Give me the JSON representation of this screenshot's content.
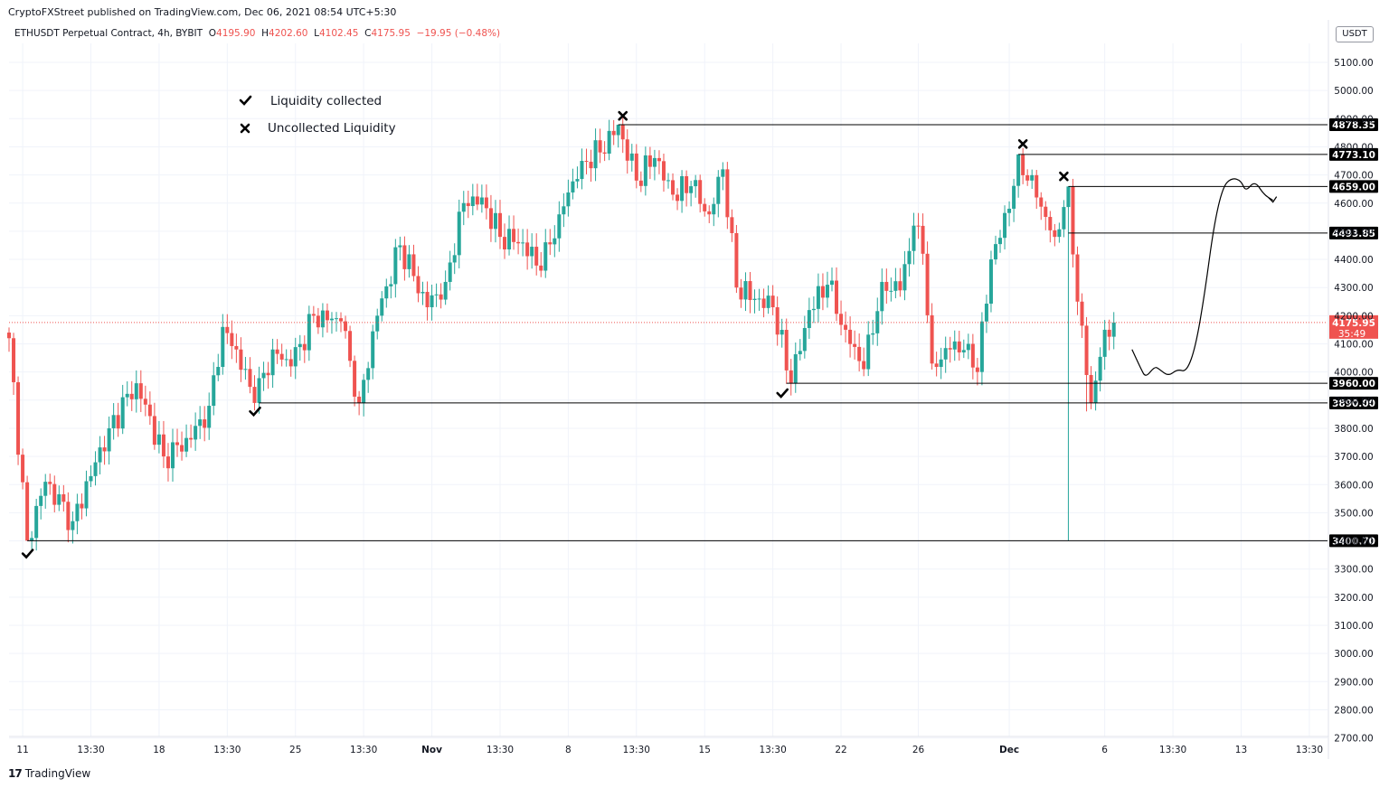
{
  "header": {
    "published": "CryptoFXStreet published on TradingView.com, Dec 06, 2021 08:54 UTC+5:30",
    "symbol": "ETHUSDT Perpetual Contract, 4h, BYBIT",
    "open_label": "O",
    "open": "4195.90",
    "high_label": "H",
    "high": "4202.60",
    "low_label": "L",
    "low": "4102.45",
    "close_label": "C",
    "close": "4175.95",
    "change": "−19.95 (−0.48%)",
    "currency": "USDT"
  },
  "footer": {
    "brand": "TradingView",
    "brand_icon": "tradingview-logo-icon"
  },
  "colors": {
    "up": "#26a69a",
    "down": "#ef5350",
    "level": "#000000",
    "price_badge": "#ef5350"
  },
  "chart_data": {
    "type": "candlestick",
    "title": "ETHUSDT Perpetual Contract, 4h, BYBIT",
    "ylim": [
      2700,
      5200
    ],
    "yticks": [
      2700,
      2800,
      2900,
      3000,
      3100,
      3200,
      3300,
      3400,
      3500,
      3600,
      3700,
      3800,
      3900,
      4000,
      4100,
      4200,
      4300,
      4400,
      4500,
      4600,
      4700,
      4800,
      4900,
      5000,
      5100
    ],
    "ytick_labels": [
      "2700.00",
      "2800.00",
      "2900.00",
      "3000.00",
      "3100.00",
      "3200.00",
      "3300.00",
      "3400.00",
      "3500.00",
      "3600.00",
      "3700.00",
      "3800.00",
      "3900.00",
      "4000.00",
      "4100.00",
      "4200.00",
      "4300.00",
      "4400.00",
      "4500.00",
      "4600.00",
      "4700.00",
      "4800.00",
      "4900.00",
      "5000.00",
      "5100.00"
    ],
    "xlim": [
      0,
      290
    ],
    "xticks": [
      {
        "i": 3,
        "label": "11",
        "bold": false
      },
      {
        "i": 18,
        "label": "13:30",
        "bold": false
      },
      {
        "i": 33,
        "label": "18",
        "bold": false
      },
      {
        "i": 48,
        "label": "13:30",
        "bold": false
      },
      {
        "i": 63,
        "label": "25",
        "bold": false
      },
      {
        "i": 78,
        "label": "13:30",
        "bold": false
      },
      {
        "i": 93,
        "label": "Nov",
        "bold": true
      },
      {
        "i": 108,
        "label": "13:30",
        "bold": false
      },
      {
        "i": 123,
        "label": "8",
        "bold": false
      },
      {
        "i": 138,
        "label": "13:30",
        "bold": false
      },
      {
        "i": 153,
        "label": "15",
        "bold": false
      },
      {
        "i": 168,
        "label": "13:30",
        "bold": false
      },
      {
        "i": 183,
        "label": "22",
        "bold": false
      },
      {
        "i": 200,
        "label": "26",
        "bold": false
      },
      {
        "i": 220,
        "label": "Dec",
        "bold": true
      },
      {
        "i": 241,
        "label": "6",
        "bold": false
      },
      {
        "i": 256,
        "label": "13:30",
        "bold": false
      },
      {
        "i": 271,
        "label": "13",
        "bold": false
      },
      {
        "i": 286,
        "label": "13:30",
        "bold": false
      }
    ],
    "anchors": [
      [
        0,
        4120
      ],
      [
        4,
        3400.7
      ],
      [
        8,
        3610
      ],
      [
        14,
        3470
      ],
      [
        22,
        3800
      ],
      [
        28,
        3960
      ],
      [
        34,
        3700
      ],
      [
        40,
        3760
      ],
      [
        44,
        3880
      ],
      [
        47,
        4160
      ],
      [
        50,
        4080
      ],
      [
        54,
        3890
      ],
      [
        58,
        4080
      ],
      [
        62,
        4020
      ],
      [
        67,
        4200
      ],
      [
        73,
        4180
      ],
      [
        77,
        3890
      ],
      [
        81,
        4200
      ],
      [
        86,
        4450
      ],
      [
        92,
        4230
      ],
      [
        96,
        4320
      ],
      [
        100,
        4600
      ],
      [
        104,
        4620
      ],
      [
        108,
        4480
      ],
      [
        113,
        4460
      ],
      [
        117,
        4360
      ],
      [
        121,
        4560
      ],
      [
        126,
        4750
      ],
      [
        130,
        4780
      ],
      [
        134,
        4878.35
      ],
      [
        138,
        4680
      ],
      [
        142,
        4760
      ],
      [
        146,
        4630
      ],
      [
        150,
        4660
      ],
      [
        154,
        4560
      ],
      [
        157,
        4720
      ],
      [
        160,
        4300
      ],
      [
        164,
        4260
      ],
      [
        168,
        4230
      ],
      [
        172,
        3960
      ],
      [
        176,
        4220
      ],
      [
        180,
        4310
      ],
      [
        184,
        4150
      ],
      [
        188,
        4010
      ],
      [
        192,
        4320
      ],
      [
        196,
        4290
      ],
      [
        199,
        4520
      ],
      [
        201,
        4420
      ],
      [
        203,
        4030
      ],
      [
        207,
        4080
      ],
      [
        211,
        4100
      ],
      [
        213,
        4000
      ],
      [
        216,
        4400
      ],
      [
        220,
        4580
      ],
      [
        222,
        4773.1
      ],
      [
        226,
        4620
      ],
      [
        230,
        4480
      ],
      [
        233,
        4659
      ],
      [
        235,
        4250
      ],
      [
        238,
        3890
      ],
      [
        241,
        4150
      ],
      [
        243,
        4175.95
      ]
    ],
    "last_price": "4175.95",
    "countdown": "35:49",
    "levels": [
      {
        "price": 4878.35,
        "label": "4878.35",
        "from_i": 134
      },
      {
        "price": 4773.1,
        "label": "4773.10",
        "from_i": 222
      },
      {
        "price": 4659.0,
        "label": "4659.00",
        "from_i": 233
      },
      {
        "price": 4493.85,
        "label": "4493.85",
        "from_i": 233
      },
      {
        "price": 3960.0,
        "label": "3960.00",
        "from_i": 171
      },
      {
        "price": 3890.0,
        "label": "3890.00",
        "from_i": 55
      },
      {
        "price": 3400.7,
        "label": "3400.70",
        "from_i": 4
      }
    ],
    "markers": [
      {
        "type": "check",
        "i": 4,
        "price": 3355
      },
      {
        "type": "check",
        "i": 54,
        "price": 3860
      },
      {
        "type": "check",
        "i": 170,
        "price": 3925
      },
      {
        "type": "cross",
        "i": 135,
        "price": 4910
      },
      {
        "type": "cross",
        "i": 223,
        "price": 4810
      },
      {
        "type": "cross",
        "i": 232,
        "price": 4695
      }
    ],
    "projection": [
      [
        247,
        4080
      ],
      [
        249,
        4010
      ],
      [
        250,
        3980
      ],
      [
        252,
        4020
      ],
      [
        253,
        4010
      ],
      [
        255,
        3985
      ],
      [
        257,
        4010
      ],
      [
        259,
        4000
      ],
      [
        261,
        4090
      ],
      [
        263,
        4280
      ],
      [
        265,
        4520
      ],
      [
        267,
        4660
      ],
      [
        269,
        4690
      ],
      [
        271,
        4680
      ],
      [
        272,
        4640
      ],
      [
        274,
        4680
      ],
      [
        276,
        4630
      ],
      [
        278,
        4610
      ]
    ],
    "legend": [
      {
        "type": "check",
        "text": "Liquidity collected"
      },
      {
        "type": "cross",
        "text": "Uncollected Liquidity"
      }
    ]
  }
}
